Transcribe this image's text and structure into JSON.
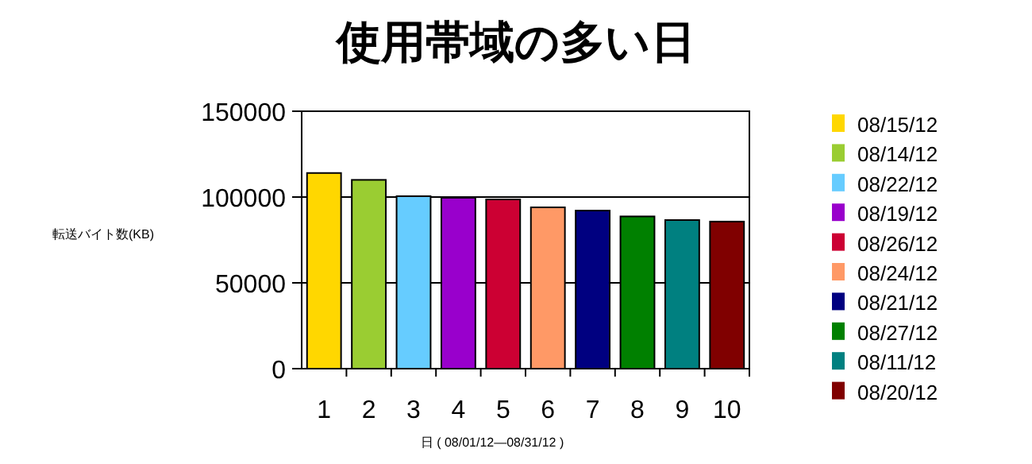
{
  "chart_data": {
    "type": "bar",
    "title": "使用帯域の多い日",
    "xlabel": "日 ( 08/01/12—08/31/12 )",
    "ylabel": "転送バイト数(KB)",
    "categories": [
      "1",
      "2",
      "3",
      "4",
      "5",
      "6",
      "7",
      "8",
      "9",
      "10"
    ],
    "series": [
      {
        "name": "08/15/12",
        "color": "#ffd700",
        "values": [
          114000,
          null,
          null,
          null,
          null,
          null,
          null,
          null,
          null,
          null
        ]
      },
      {
        "name": "08/14/12",
        "color": "#9acd32",
        "values": [
          null,
          110000,
          null,
          null,
          null,
          null,
          null,
          null,
          null,
          null
        ]
      },
      {
        "name": "08/22/12",
        "color": "#66ccff",
        "values": [
          null,
          null,
          100500,
          null,
          null,
          null,
          null,
          null,
          null,
          null
        ]
      },
      {
        "name": "08/19/12",
        "color": "#9900cc",
        "values": [
          null,
          null,
          null,
          99600,
          null,
          null,
          null,
          null,
          null,
          null
        ]
      },
      {
        "name": "08/26/12",
        "color": "#cc0033",
        "values": [
          null,
          null,
          null,
          null,
          98600,
          null,
          null,
          null,
          null,
          null
        ]
      },
      {
        "name": "08/24/12",
        "color": "#ff9966",
        "values": [
          null,
          null,
          null,
          null,
          null,
          94000,
          null,
          null,
          null,
          null
        ]
      },
      {
        "name": "08/21/12",
        "color": "#000080",
        "values": [
          null,
          null,
          null,
          null,
          null,
          null,
          92100,
          null,
          null,
          null
        ]
      },
      {
        "name": "08/27/12",
        "color": "#008000",
        "values": [
          null,
          null,
          null,
          null,
          null,
          null,
          null,
          88700,
          null,
          null
        ]
      },
      {
        "name": "08/11/12",
        "color": "#008080",
        "values": [
          null,
          null,
          null,
          null,
          null,
          null,
          null,
          null,
          86600,
          null
        ]
      },
      {
        "name": "08/20/12",
        "color": "#800000",
        "values": [
          null,
          null,
          null,
          null,
          null,
          null,
          null,
          null,
          null,
          85700
        ]
      }
    ],
    "ylim": [
      0,
      150000
    ],
    "yticks": [
      0,
      50000,
      100000,
      150000
    ],
    "grid": "y",
    "legend": "right"
  }
}
